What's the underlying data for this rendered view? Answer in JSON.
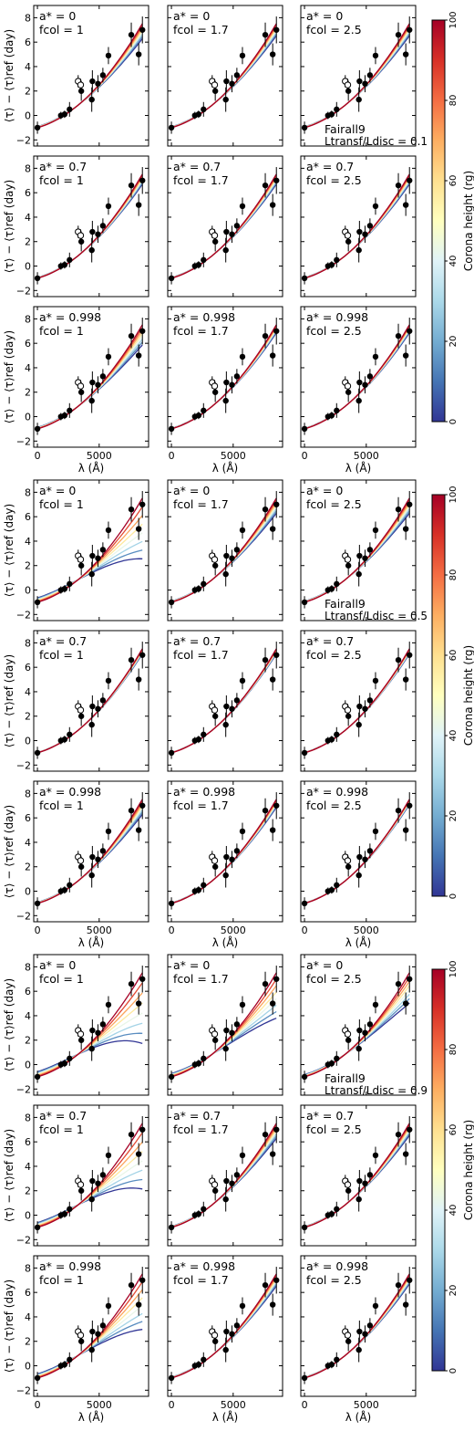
{
  "figure": {
    "ylabel": "⟨τ⟩ − ⟨τ⟩ref (day)",
    "xlabel": "λ (Å)",
    "colorbar_label": "Corona height (rg)",
    "colorbar_ticks": [
      "0",
      "20",
      "40",
      "60",
      "80",
      "100"
    ],
    "colormap": [
      "#313695",
      "#4575b4",
      "#74add1",
      "#abd9e9",
      "#e0f3f8",
      "#ffffbf",
      "#fee090",
      "#fdae61",
      "#f46d43",
      "#d73027",
      "#a50026"
    ]
  },
  "chart_data": {
    "type": "line",
    "xlim": [
      -300,
      9000
    ],
    "ylim": [
      -2.5,
      9
    ],
    "xticks": [
      0,
      5000
    ],
    "yticks": [
      -2,
      0,
      2,
      4,
      6,
      8
    ],
    "observations": {
      "filled": {
        "x": [
          0,
          1900,
          2200,
          2600,
          3550,
          4400,
          4450,
          4900,
          5300,
          5750,
          7600,
          8200,
          8500
        ],
        "y": [
          -1.0,
          0.0,
          0.1,
          0.5,
          2.0,
          1.3,
          2.8,
          2.6,
          3.3,
          4.9,
          6.6,
          5.0,
          7.0
        ],
        "err": [
          0.5,
          0.3,
          0.3,
          0.6,
          0.8,
          1.0,
          0.9,
          0.7,
          0.6,
          0.7,
          1.0,
          0.9,
          1.1
        ]
      },
      "open": {
        "x": [
          3300,
          3500
        ],
        "y": [
          2.8,
          2.5
        ],
        "err": [
          0.5,
          0.5
        ]
      }
    },
    "groups": [
      {
        "name": "Fairall9",
        "ratio_label": "Ltransf/Ldisc = 0.1",
        "panels": [
          {
            "spin": "a* = 0",
            "fcol": "fcol = 1",
            "model_spread": 0.15,
            "model_tilt": 0.0
          },
          {
            "spin": "a* = 0",
            "fcol": "fcol = 1.7",
            "model_spread": 0.12,
            "model_tilt": 0.0
          },
          {
            "spin": "a* = 0",
            "fcol": "fcol = 2.5",
            "model_spread": 0.12,
            "model_tilt": 0.0
          },
          {
            "spin": "a* = 0.7",
            "fcol": "fcol = 1",
            "model_spread": 0.1,
            "model_tilt": 0.0
          },
          {
            "spin": "a* = 0.7",
            "fcol": "fcol = 1.7",
            "model_spread": 0.1,
            "model_tilt": 0.0
          },
          {
            "spin": "a* = 0.7",
            "fcol": "fcol = 2.5",
            "model_spread": 0.1,
            "model_tilt": 0.0
          },
          {
            "spin": "a* = 0.998",
            "fcol": "fcol = 1",
            "model_spread": 0.2,
            "model_tilt": 0.0
          },
          {
            "spin": "a* = 0.998",
            "fcol": "fcol = 1.7",
            "model_spread": 0.08,
            "model_tilt": 0.0
          },
          {
            "spin": "a* = 0.998",
            "fcol": "fcol = 2.5",
            "model_spread": 0.08,
            "model_tilt": 0.0
          }
        ]
      },
      {
        "name": "Fairall9",
        "ratio_label": "Ltransf/Ldisc = 0.5",
        "panels": [
          {
            "spin": "a* = 0",
            "fcol": "fcol = 1",
            "model_spread": 0.6,
            "model_tilt": 0.0
          },
          {
            "spin": "a* = 0",
            "fcol": "fcol = 1.7",
            "model_spread": 0.15,
            "model_tilt": 0.0
          },
          {
            "spin": "a* = 0",
            "fcol": "fcol = 2.5",
            "model_spread": 0.15,
            "model_tilt": 0.0
          },
          {
            "spin": "a* = 0.7",
            "fcol": "fcol = 1",
            "model_spread": 0.05,
            "model_tilt": 0.0
          },
          {
            "spin": "a* = 0.7",
            "fcol": "fcol = 1.7",
            "model_spread": 0.05,
            "model_tilt": 0.0
          },
          {
            "spin": "a* = 0.7",
            "fcol": "fcol = 2.5",
            "model_spread": 0.05,
            "model_tilt": 0.0
          },
          {
            "spin": "a* = 0.998",
            "fcol": "fcol = 1",
            "model_spread": 0.15,
            "model_tilt": 0.0
          },
          {
            "spin": "a* = 0.998",
            "fcol": "fcol = 1.7",
            "model_spread": 0.08,
            "model_tilt": 0.0
          },
          {
            "spin": "a* = 0.998",
            "fcol": "fcol = 2.5",
            "model_spread": 0.05,
            "model_tilt": 0.0
          }
        ]
      },
      {
        "name": "Fairall9",
        "ratio_label": "Ltransf/Ldisc = 0.9",
        "panels": [
          {
            "spin": "a* = 0",
            "fcol": "fcol = 1",
            "model_spread": 0.7,
            "model_tilt": 0.0
          },
          {
            "spin": "a* = 0",
            "fcol": "fcol = 1.7",
            "model_spread": 0.45,
            "model_tilt": 0.0
          },
          {
            "spin": "a* = 0",
            "fcol": "fcol = 2.5",
            "model_spread": 0.3,
            "model_tilt": 0.0
          },
          {
            "spin": "a* = 0.7",
            "fcol": "fcol = 1",
            "model_spread": 0.65,
            "model_tilt": 0.0
          },
          {
            "spin": "a* = 0.7",
            "fcol": "fcol = 1.7",
            "model_spread": 0.15,
            "model_tilt": 0.0
          },
          {
            "spin": "a* = 0.7",
            "fcol": "fcol = 2.5",
            "model_spread": 0.12,
            "model_tilt": 0.0
          },
          {
            "spin": "a* = 0.998",
            "fcol": "fcol = 1",
            "model_spread": 0.55,
            "model_tilt": 0.0
          },
          {
            "spin": "a* = 0.998",
            "fcol": "fcol = 1.7",
            "model_spread": 0.12,
            "model_tilt": 0.0
          },
          {
            "spin": "a* = 0.998",
            "fcol": "fcol = 2.5",
            "model_spread": 0.1,
            "model_tilt": 0.0
          }
        ]
      }
    ]
  }
}
